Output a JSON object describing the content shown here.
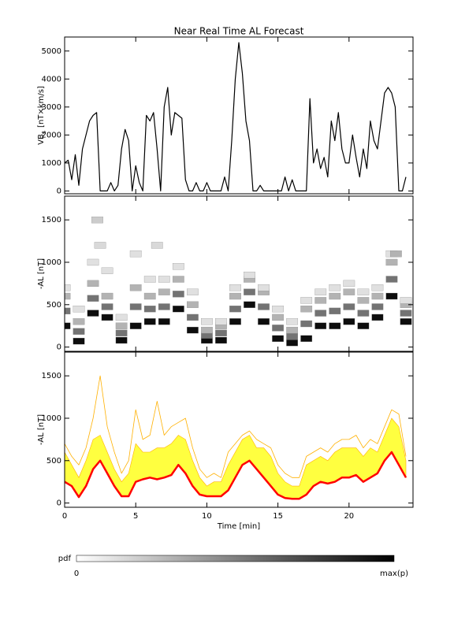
{
  "chart_data": [
    {
      "type": "line",
      "title": "Near Real Time AL Forecast",
      "ylabel": "VB",
      "ylabel_sub": "s",
      "ylabel_unit": "[nT×km/s]",
      "color": "#000000",
      "xlim": [
        0,
        24.5
      ],
      "ylim": [
        -100,
        5500
      ],
      "yticks": [
        0,
        1000,
        2000,
        3000,
        4000,
        5000
      ],
      "x": [
        0,
        0.25,
        0.5,
        0.75,
        1,
        1.25,
        1.5,
        1.75,
        2,
        2.25,
        2.5,
        2.75,
        3,
        3.25,
        3.5,
        3.75,
        4,
        4.25,
        4.5,
        4.75,
        5,
        5.25,
        5.5,
        5.75,
        6,
        6.25,
        6.5,
        6.75,
        7,
        7.25,
        7.5,
        7.75,
        8,
        8.25,
        8.5,
        8.75,
        9,
        9.25,
        9.5,
        9.75,
        10,
        10.25,
        10.5,
        10.75,
        11,
        11.25,
        11.5,
        11.75,
        12,
        12.25,
        12.5,
        12.75,
        13,
        13.25,
        13.5,
        13.75,
        14,
        14.25,
        14.5,
        14.75,
        15,
        15.25,
        15.5,
        15.75,
        16,
        16.25,
        16.5,
        16.75,
        17,
        17.25,
        17.5,
        17.75,
        18,
        18.25,
        18.5,
        18.75,
        19,
        19.25,
        19.5,
        19.75,
        20,
        20.25,
        20.5,
        20.75,
        21,
        21.25,
        21.5,
        21.75,
        22,
        22.25,
        22.5,
        22.75,
        23,
        23.25,
        23.5,
        23.75,
        24
      ],
      "values": [
        1000,
        1100,
        400,
        1300,
        200,
        1500,
        2000,
        2500,
        2700,
        2800,
        0,
        0,
        0,
        300,
        0,
        200,
        1500,
        2200,
        1800,
        0,
        900,
        300,
        0,
        2700,
        2500,
        2800,
        1500,
        0,
        3000,
        3700,
        2000,
        2800,
        2700,
        2600,
        400,
        0,
        0,
        300,
        0,
        0,
        300,
        0,
        0,
        0,
        0,
        500,
        0,
        1800,
        4000,
        5300,
        4200,
        2500,
        1800,
        0,
        0,
        200,
        0,
        0,
        0,
        0,
        0,
        0,
        500,
        0,
        400,
        0,
        0,
        0,
        0,
        3300,
        1000,
        1500,
        800,
        1200,
        500,
        2500,
        1800,
        2800,
        1500,
        1000,
        1000,
        2000,
        1200,
        500,
        1500,
        800,
        2500,
        1800,
        1500,
        2500,
        3500,
        3700,
        3500,
        3000,
        0,
        0,
        500
      ]
    },
    {
      "type": "density",
      "ylabel": "-AL [nT]",
      "xlim": [
        0,
        24.5
      ],
      "ylim": [
        -50,
        1780
      ],
      "yticks": [
        0,
        500,
        1000,
        1500
      ],
      "x": [
        0,
        0,
        0,
        0,
        1,
        1,
        1,
        1,
        2,
        2,
        2,
        2,
        3,
        3,
        3,
        3,
        4,
        4,
        4,
        4,
        5,
        5,
        5,
        5,
        6,
        6,
        6,
        6,
        7,
        7,
        7,
        7,
        8,
        8,
        8,
        8,
        9,
        9,
        9,
        9,
        10,
        10,
        10,
        10,
        11,
        11,
        11,
        11,
        12,
        12,
        12,
        12,
        13,
        13,
        13,
        13,
        14,
        14,
        14,
        14,
        15,
        15,
        15,
        15,
        16,
        16,
        16,
        16,
        17,
        17,
        17,
        17,
        18,
        18,
        18,
        18,
        19,
        19,
        19,
        19,
        20,
        20,
        20,
        20,
        21,
        21,
        21,
        21,
        22,
        22,
        22,
        22,
        23,
        23,
        23,
        23,
        24,
        24,
        24,
        24,
        2.3,
        2.5,
        6.5,
        23.3
      ],
      "y": [
        250,
        425,
        600,
        700,
        70,
        185,
        300,
        450,
        400,
        575,
        750,
        1000,
        350,
        475,
        600,
        900,
        80,
        165,
        250,
        350,
        250,
        475,
        700,
        1100,
        300,
        450,
        600,
        800,
        300,
        475,
        650,
        800,
        450,
        625,
        800,
        950,
        200,
        350,
        500,
        650,
        80,
        140,
        200,
        300,
        80,
        165,
        250,
        300,
        300,
        450,
        600,
        700,
        500,
        650,
        800,
        850,
        300,
        475,
        650,
        700,
        100,
        225,
        350,
        450,
        50,
        125,
        200,
        300,
        100,
        275,
        450,
        550,
        250,
        400,
        550,
        650,
        250,
        425,
        600,
        700,
        300,
        475,
        650,
        750,
        250,
        400,
        550,
        650,
        350,
        475,
        600,
        700,
        600,
        800,
        1000,
        1100,
        300,
        400,
        500,
        550,
        1500,
        1200,
        1200,
        1100
      ],
      "p": [
        0.95,
        0.55,
        0.3,
        0.12,
        0.95,
        0.55,
        0.3,
        0.12,
        0.95,
        0.55,
        0.3,
        0.12,
        0.95,
        0.55,
        0.3,
        0.12,
        0.95,
        0.55,
        0.3,
        0.12,
        0.95,
        0.55,
        0.3,
        0.12,
        0.95,
        0.55,
        0.3,
        0.12,
        0.95,
        0.55,
        0.3,
        0.12,
        0.95,
        0.55,
        0.3,
        0.12,
        0.95,
        0.55,
        0.3,
        0.12,
        0.95,
        0.55,
        0.3,
        0.12,
        0.95,
        0.55,
        0.3,
        0.12,
        0.95,
        0.55,
        0.3,
        0.12,
        0.95,
        0.55,
        0.3,
        0.12,
        0.95,
        0.55,
        0.3,
        0.12,
        0.95,
        0.55,
        0.3,
        0.12,
        0.95,
        0.55,
        0.3,
        0.12,
        0.95,
        0.55,
        0.3,
        0.12,
        0.95,
        0.55,
        0.3,
        0.12,
        0.95,
        0.55,
        0.3,
        0.12,
        0.95,
        0.55,
        0.3,
        0.12,
        0.95,
        0.55,
        0.3,
        0.12,
        0.95,
        0.55,
        0.3,
        0.12,
        0.95,
        0.55,
        0.3,
        0.12,
        0.95,
        0.55,
        0.3,
        0.12,
        0.2,
        0.15,
        0.15,
        0.3
      ],
      "colorbar": {
        "label": "pdf",
        "min": 0,
        "max_label": "max(p)"
      }
    },
    {
      "type": "band",
      "ylabel": "-AL [nT]",
      "xlabel": "Time [min]",
      "xlim": [
        0,
        24.5
      ],
      "xticks": [
        0,
        5,
        10,
        15,
        20
      ],
      "ylim": [
        -50,
        1780
      ],
      "yticks": [
        0,
        500,
        1000,
        1500
      ],
      "x": [
        0,
        0.5,
        1,
        1.5,
        2,
        2.5,
        3,
        3.5,
        4,
        4.5,
        5,
        5.5,
        6,
        6.5,
        7,
        7.5,
        8,
        8.5,
        9,
        9.5,
        10,
        10.5,
        11,
        11.5,
        12,
        12.5,
        13,
        13.5,
        14,
        14.5,
        15,
        15.5,
        16,
        16.5,
        17,
        17.5,
        18,
        18.5,
        19,
        19.5,
        20,
        20.5,
        21,
        21.5,
        22,
        22.5,
        23,
        23.5,
        24
      ],
      "series": [
        {
          "color": "#ffff40",
          "fill": true,
          "values": [
            600,
            450,
            300,
            500,
            750,
            800,
            600,
            400,
            250,
            350,
            700,
            600,
            600,
            650,
            650,
            700,
            800,
            750,
            500,
            300,
            200,
            250,
            250,
            450,
            600,
            750,
            800,
            650,
            650,
            550,
            350,
            250,
            200,
            200,
            450,
            500,
            550,
            500,
            600,
            650,
            650,
            650,
            550,
            650,
            600,
            800,
            1000,
            900,
            500
          ]
        },
        {
          "color": "#ffb000",
          "values": [
            700,
            550,
            450,
            650,
            1000,
            1500,
            900,
            600,
            350,
            500,
            1100,
            750,
            800,
            1200,
            800,
            900,
            950,
            1000,
            650,
            400,
            300,
            350,
            300,
            600,
            700,
            800,
            850,
            750,
            700,
            650,
            450,
            350,
            300,
            300,
            550,
            600,
            650,
            600,
            700,
            750,
            750,
            800,
            650,
            750,
            700,
            900,
            1100,
            1050,
            550
          ]
        },
        {
          "color": "#ff0000",
          "width": 2.5,
          "values": [
            250,
            200,
            70,
            200,
            400,
            500,
            350,
            200,
            80,
            80,
            250,
            280,
            300,
            280,
            300,
            330,
            450,
            350,
            200,
            100,
            80,
            80,
            80,
            150,
            300,
            450,
            500,
            400,
            300,
            200,
            100,
            60,
            50,
            50,
            100,
            200,
            250,
            230,
            250,
            300,
            300,
            330,
            250,
            300,
            350,
            500,
            600,
            450,
            300
          ]
        }
      ]
    }
  ]
}
